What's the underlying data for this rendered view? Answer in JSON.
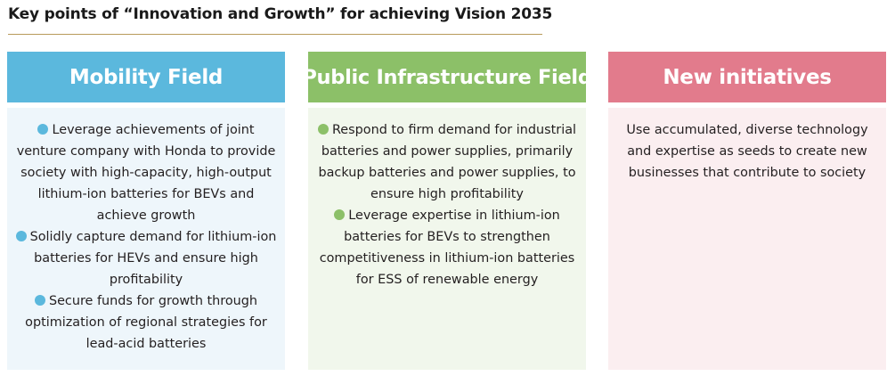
{
  "heading": "Key points of “Innovation and Growth” for achieving Vision 2035",
  "colors": {
    "mobility": "#5bb8dd",
    "infrastructure": "#8cc068",
    "new_initiatives": "#e27b8c",
    "rule": "#b89a5a"
  },
  "panels": [
    {
      "title": "Mobility Field",
      "items": [
        "Leverage achievements of joint venture company with Honda to provide society with high-capacity, high-output lithium-ion batteries for BEVs and achieve growth",
        "Solidly capture demand for lithium-ion batteries for HEVs and ensure high profitability",
        "Secure funds for growth through optimization of regional strategies for lead-acid batteries"
      ]
    },
    {
      "title": "Public Infrastructure Field",
      "items": [
        "Respond to firm demand for industrial batteries and power supplies, primarily backup batteries and power supplies, to ensure high profitability",
        "Leverage expertise in lithium-ion batteries for BEVs to strengthen competitiveness in lithium-ion batteries for ESS of renewable energy"
      ]
    },
    {
      "title": "New initiatives",
      "text": "Use accumulated, diverse technology and expertise as seeds to create new businesses that contribute to society"
    }
  ]
}
